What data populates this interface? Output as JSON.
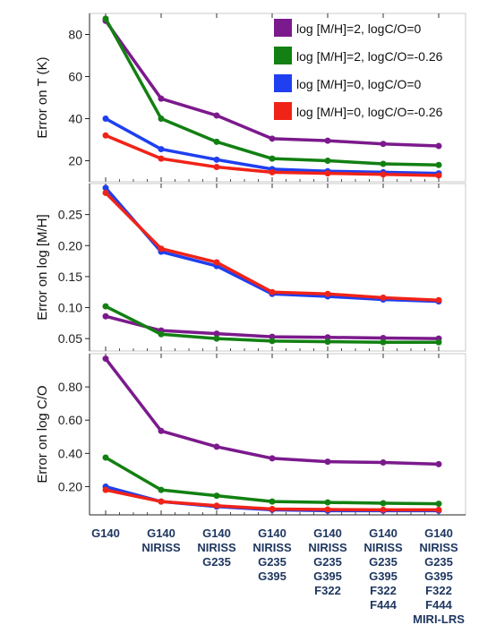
{
  "categories": [
    [
      "G140"
    ],
    [
      "G140",
      "NIRISS"
    ],
    [
      "G140",
      "NIRISS",
      "G235"
    ],
    [
      "G140",
      "NIRISS",
      "G235",
      "G395"
    ],
    [
      "G140",
      "NIRISS",
      "G235",
      "G395",
      "F322"
    ],
    [
      "G140",
      "NIRISS",
      "G235",
      "G395",
      "F322",
      "F444"
    ],
    [
      "G140",
      "NIRISS",
      "G235",
      "G395",
      "F322",
      "F444",
      "MIRI-LRS"
    ]
  ],
  "colors": {
    "purple": "#7b1a8c",
    "green": "#128012",
    "blue": "#1f3ff0",
    "red": "#f02318",
    "category_text": "#1f3760"
  },
  "chart_data": [
    {
      "type": "line",
      "ylabel": "Error on T (K)",
      "ylim": [
        10,
        90
      ],
      "yticks": [
        20,
        40,
        60,
        80
      ],
      "ytick_labels": [
        "20",
        "40",
        "60",
        "80"
      ],
      "legend": "top-right",
      "series": [
        {
          "name": "log [M/H]=2, logC/O=0",
          "color": "#7b1a8c",
          "values": [
            86.5,
            49.5,
            41.5,
            30.5,
            29.5,
            28,
            27
          ]
        },
        {
          "name": "log [M/H]=2, logC/O=-0.26",
          "color": "#128012",
          "values": [
            87.5,
            40,
            29,
            21,
            20,
            18.5,
            18
          ]
        },
        {
          "name": "log [M/H]=0, logC/O=0",
          "color": "#1f3ff0",
          "values": [
            40,
            25.5,
            20.5,
            16,
            15,
            14.5,
            14
          ]
        },
        {
          "name": "log [M/H]=0, logC/O=-0.26",
          "color": "#f02318",
          "values": [
            32,
            21,
            17,
            14.5,
            14,
            13.5,
            13
          ]
        }
      ]
    },
    {
      "type": "line",
      "ylabel": "Error on log [M/H]",
      "ylim": [
        0.03,
        0.3
      ],
      "yticks": [
        0.05,
        0.1,
        0.15,
        0.2,
        0.25
      ],
      "ytick_labels": [
        "0.05",
        "0.10",
        "0.15",
        "0.20",
        "0.25"
      ],
      "series": [
        {
          "color": "#7b1a8c",
          "values": [
            0.086,
            0.063,
            0.058,
            0.053,
            0.052,
            0.051,
            0.05
          ]
        },
        {
          "color": "#128012",
          "values": [
            0.102,
            0.057,
            0.05,
            0.046,
            0.045,
            0.044,
            0.044
          ]
        },
        {
          "color": "#1f3ff0",
          "values": [
            0.293,
            0.19,
            0.167,
            0.122,
            0.118,
            0.113,
            0.11
          ]
        },
        {
          "color": "#f02318",
          "values": [
            0.285,
            0.195,
            0.173,
            0.125,
            0.122,
            0.116,
            0.112
          ]
        }
      ]
    },
    {
      "type": "line",
      "ylabel": "Error on log C/O",
      "ylim": [
        0.03,
        1.0
      ],
      "yticks": [
        0.2,
        0.4,
        0.6,
        0.8
      ],
      "ytick_labels": [
        "0.20",
        "0.40",
        "0.60",
        "0.80"
      ],
      "series": [
        {
          "color": "#7b1a8c",
          "values": [
            0.97,
            0.535,
            0.44,
            0.37,
            0.35,
            0.345,
            0.335
          ]
        },
        {
          "color": "#128012",
          "values": [
            0.375,
            0.18,
            0.145,
            0.11,
            0.105,
            0.1,
            0.097
          ]
        },
        {
          "color": "#1f3ff0",
          "values": [
            0.2,
            0.11,
            0.08,
            0.06,
            0.055,
            0.055,
            0.055
          ]
        },
        {
          "color": "#f02318",
          "values": [
            0.18,
            0.11,
            0.085,
            0.065,
            0.062,
            0.06,
            0.06
          ]
        }
      ]
    }
  ]
}
